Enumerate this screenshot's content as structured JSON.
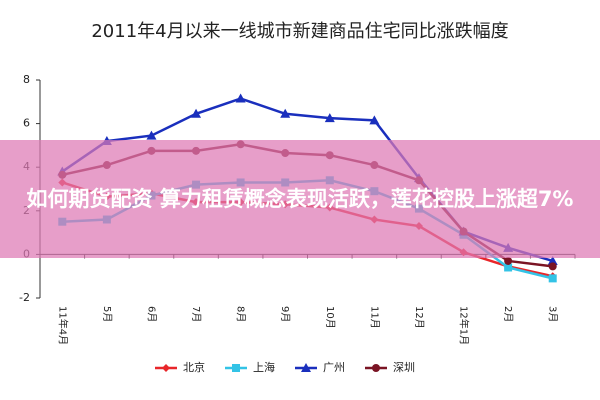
{
  "chart_data": {
    "type": "line",
    "title": "2011年4月以来一线城市新建商品住宅同比涨跌幅度",
    "categories": [
      "11年4月",
      "5月",
      "6月",
      "7月",
      "8月",
      "9月",
      "10月",
      "11月",
      "12月",
      "12年1月",
      "2月",
      "3月"
    ],
    "series": [
      {
        "name": "北京",
        "color": "#e8262a",
        "marker": "diamond",
        "values": [
          3.3,
          2.65,
          2.8,
          2.4,
          2.4,
          2.3,
          2.15,
          1.6,
          1.3,
          0.1,
          -0.55,
          -1.0
        ]
      },
      {
        "name": "上海",
        "color": "#33c3e6",
        "marker": "square",
        "values": [
          1.5,
          1.6,
          2.7,
          3.2,
          3.3,
          3.3,
          3.4,
          2.9,
          2.1,
          0.9,
          -0.6,
          -1.1
        ]
      },
      {
        "name": "广州",
        "color": "#1a2fbd",
        "marker": "triangle",
        "values": [
          3.8,
          5.2,
          5.45,
          6.45,
          7.15,
          6.45,
          6.25,
          6.15,
          3.5,
          1.05,
          0.3,
          -0.3
        ]
      },
      {
        "name": "深圳",
        "color": "#7a1424",
        "marker": "circle",
        "values": [
          3.65,
          4.1,
          4.75,
          4.75,
          5.05,
          4.65,
          4.55,
          4.1,
          3.4,
          1.05,
          -0.3,
          -0.55
        ]
      }
    ],
    "ylim": [
      -2,
      8
    ],
    "yticks": [
      -2,
      0,
      2,
      4,
      6,
      8
    ],
    "grid": false,
    "legend": "bottom"
  },
  "overlay": {
    "text": "如何期货配资 算力租赁概念表现活跃，莲花控股上涨超7%"
  }
}
